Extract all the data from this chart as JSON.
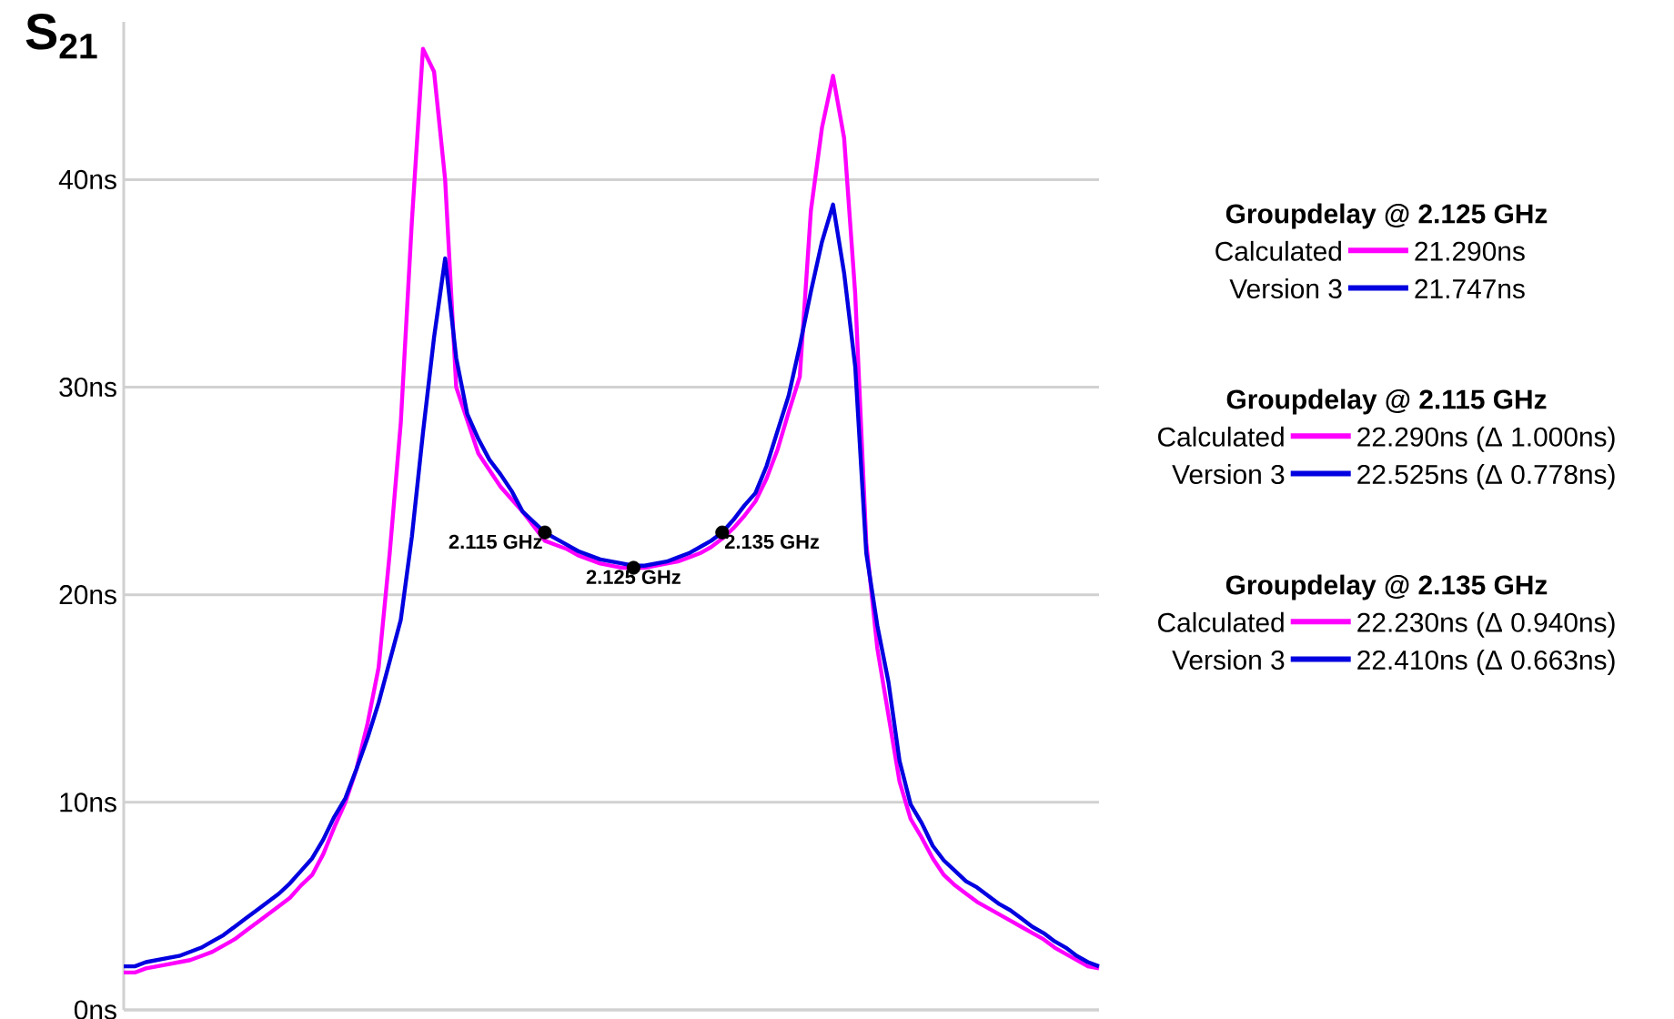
{
  "chart_data": {
    "type": "line",
    "title": "S$_{21}$",
    "categories": [
      null,
      null,
      null,
      null,
      null,
      null,
      null,
      null,
      null,
      null,
      null,
      null,
      null,
      null,
      null,
      null,
      null,
      null,
      null,
      null,
      null,
      null,
      null,
      null,
      null,
      null,
      null,
      null,
      null,
      null,
      null,
      null,
      null,
      null,
      null,
      null,
      null,
      null,
      null,
      null,
      null,
      null,
      null,
      null,
      null,
      null,
      null,
      null,
      null,
      null,
      null,
      null,
      null,
      null,
      null,
      null,
      null,
      null,
      null,
      null,
      null,
      null,
      null,
      null,
      null,
      null,
      null,
      null,
      null,
      null,
      null,
      null,
      null,
      null,
      null,
      null,
      null,
      null,
      null,
      null,
      null,
      null,
      null,
      null,
      null,
      null,
      null,
      null,
      null
    ],
    "ylim": [
      0,
      47.6
    ],
    "yticks": [
      {
        "value": 0,
        "label": "0ns"
      },
      {
        "value": 10,
        "label": "10ns"
      },
      {
        "value": 20,
        "label": "20ns"
      },
      {
        "value": 30,
        "label": "30ns"
      },
      {
        "value": 40,
        "label": "40ns"
      }
    ],
    "tick_labels": "y",
    "grid": "y",
    "legend": "right",
    "series": [
      {
        "name": "Calculated",
        "color": "#ff00ff",
        "values": [
          1.8,
          1.8,
          2.0,
          2.1,
          2.2,
          2.3,
          2.4,
          2.6,
          2.8,
          3.1,
          3.4,
          3.8,
          4.2,
          4.6,
          5.0,
          5.4,
          6.0,
          6.5,
          7.5,
          8.8,
          10.0,
          11.6,
          13.8,
          16.5,
          22,
          28.3,
          38,
          46.3,
          45.2,
          40,
          30,
          28.4,
          26.8,
          26.0,
          25.2,
          24.6,
          24.0,
          23.3,
          22.6,
          22.4,
          22.2,
          21.9,
          21.7,
          21.5,
          21.4,
          21.3,
          21.3,
          21.3,
          21.4,
          21.5,
          21.6,
          21.8,
          22.0,
          22.3,
          22.7,
          23.2,
          23.8,
          24.5,
          25.6,
          27.0,
          28.8,
          30.5,
          38.5,
          42.5,
          45.0,
          42,
          34.5,
          22.5,
          17.4,
          14.2,
          11.0,
          9.2,
          8.3,
          7.3,
          6.5,
          6.0,
          5.6,
          5.2,
          4.9,
          4.6,
          4.3,
          4.0,
          3.7,
          3.4,
          3.0,
          2.7,
          2.4,
          2.1,
          2.0
        ]
      },
      {
        "name": "Version 3",
        "color": "#0000e0",
        "values": [
          2.1,
          2.1,
          2.3,
          2.4,
          2.5,
          2.6,
          2.8,
          3.0,
          3.3,
          3.6,
          4.0,
          4.4,
          4.8,
          5.2,
          5.6,
          6.1,
          6.7,
          7.3,
          8.2,
          9.3,
          10.2,
          11.6,
          13.1,
          14.8,
          16.8,
          18.8,
          22.8,
          27.8,
          32.4,
          36.2,
          31.4,
          28.7,
          27.5,
          26.5,
          25.8,
          25.0,
          24.0,
          23.5,
          23.0,
          22.7,
          22.4,
          22.1,
          21.9,
          21.7,
          21.6,
          21.5,
          21.4,
          21.4,
          21.5,
          21.6,
          21.8,
          22.0,
          22.3,
          22.6,
          23.0,
          23.6,
          24.3,
          24.9,
          26.2,
          27.9,
          29.6,
          32.0,
          34.6,
          37.0,
          38.8,
          35.5,
          31.0,
          22.0,
          18.5,
          15.8,
          12.0,
          9.9,
          9.0,
          7.9,
          7.2,
          6.7,
          6.2,
          5.9,
          5.5,
          5.1,
          4.8,
          4.4,
          4.0,
          3.7,
          3.3,
          3.0,
          2.6,
          2.3,
          2.1
        ]
      },
      {
        "type": "scatter",
        "color": "#000000",
        "values": [
          null,
          null,
          null,
          null,
          null,
          null,
          null,
          null,
          null,
          null,
          null,
          null,
          null,
          null,
          null,
          null,
          null,
          null,
          null,
          null,
          null,
          null,
          null,
          null,
          null,
          null,
          null,
          null,
          null,
          null,
          null,
          null,
          null,
          null,
          null,
          null,
          null,
          null,
          23.0,
          null,
          null,
          null,
          null,
          null,
          null,
          null,
          21.3,
          null,
          null,
          null,
          null,
          null,
          null,
          null,
          23.0,
          null,
          null,
          null,
          null,
          null,
          null,
          null,
          null,
          null,
          null,
          null,
          null,
          null,
          null,
          null,
          null,
          null,
          null,
          null,
          null,
          null,
          null,
          null,
          null,
          null,
          null,
          null,
          null,
          null,
          null,
          null,
          null,
          null,
          null
        ]
      }
    ],
    "annotations": [
      "2.115 GHz",
      "2.125 GHz",
      "2.135 GHz",
      "Groupdelay @ 2.125 GHz",
      "21.290ns",
      "21.747ns",
      "Groupdelay @ 2.115 GHz",
      "22.290ns (Δ 1.000ns)",
      "22.525ns (Δ 0.778ns)",
      "Groupdelay @ 2.135 GHz",
      "22.230ns (Δ 0.940ns)",
      "22.410ns (Δ 0.663ns)"
    ]
  }
}
